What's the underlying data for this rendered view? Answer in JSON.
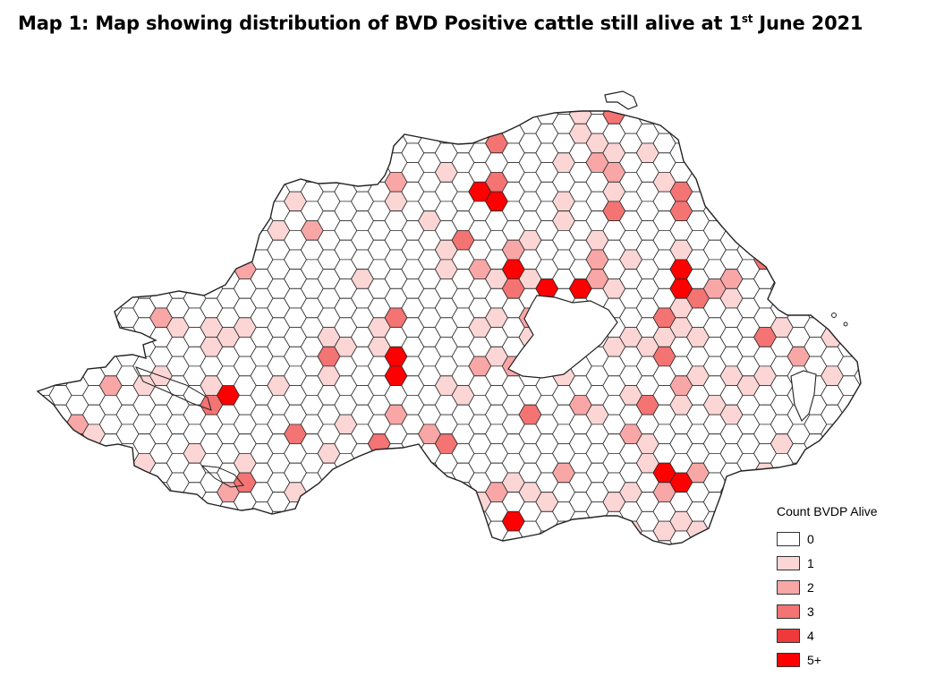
{
  "title": {
    "text_before": "Map 1: Map showing distribution of BVD Positive cattle still alive at 1",
    "superscript": "st",
    "text_after": " June 2021"
  },
  "legend": {
    "title": "Count BVDP Alive",
    "classes": [
      {
        "label": "0",
        "color": "#ffffff"
      },
      {
        "label": "1",
        "color": "#fcd5d5"
      },
      {
        "label": "2",
        "color": "#f9a6a6"
      },
      {
        "label": "3",
        "color": "#f47373"
      },
      {
        "label": "4",
        "color": "#ee3a3a"
      },
      {
        "label": "5+",
        "color": "#ff0000"
      }
    ]
  },
  "map_data": {
    "region": "Northern Ireland",
    "grid": "hexagonal bins",
    "hex_outline_color": "#2a2a2a",
    "coast_color": "#222222"
  }
}
